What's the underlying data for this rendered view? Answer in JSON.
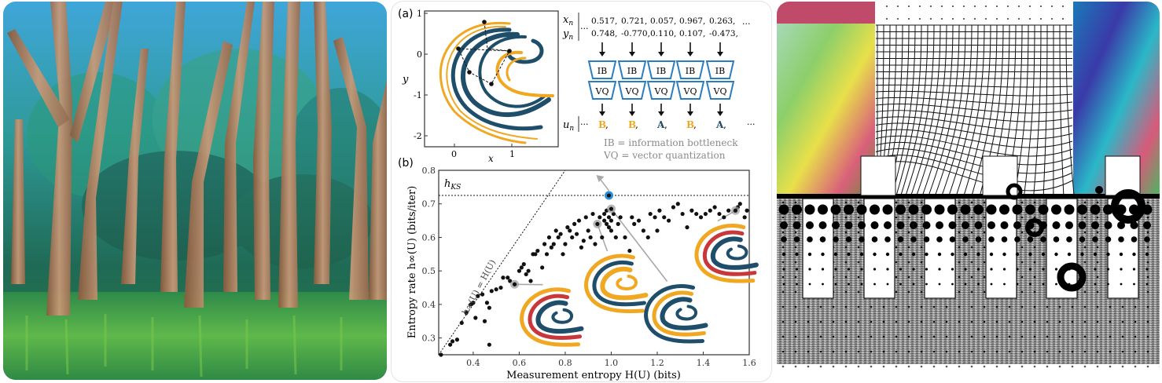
{
  "panels": [
    {
      "name": "forest-painting",
      "description": "Acrylic painting of a forest with tall tree trunks over a green undergrowth with paint drips"
    },
    {
      "name": "scientific-figure",
      "description": "Two-panel figure on measurement entropy and entropy rate of a chaotic attractor"
    },
    {
      "name": "glitch-art",
      "description": "Abstract glitch collage with warped grid, halftone dots, white bars and rings"
    }
  ],
  "colors": {
    "attractor_blue": "#1f4e6b",
    "attractor_orange": "#f0a823",
    "attractor_red": "#c8373a",
    "ib_vq_blue": "#2a7dbf",
    "highlight_blue": "#2b8fd6",
    "arrow_gray": "#a8a8a8",
    "gray_text": "#8a8a8a"
  },
  "figure": {
    "panel_a": {
      "label": "(a)",
      "x_axis_label": "x",
      "y_axis_label": "y",
      "x_ticks": [
        "0",
        "1"
      ],
      "y_ticks": [
        "1",
        "0",
        "-1",
        "-2"
      ],
      "xn_label": "x",
      "xn_sub": "n",
      "yn_label": "y",
      "yn_sub": "n",
      "un_label": "u",
      "un_sub": "n",
      "ellipsis": "···",
      "xn_values": [
        "0.517,",
        "0.721,",
        "0.057,",
        "0.967,",
        "0.263,"
      ],
      "yn_values": [
        "0.748,",
        "-0.770,",
        "0.110,",
        "0.107,",
        "-0.473,"
      ],
      "ib_label": "IB",
      "vq_label": "VQ",
      "symbols": [
        {
          "text": "B",
          "color_key": "orange"
        },
        {
          "text": "B",
          "color_key": "orange"
        },
        {
          "text": "A",
          "color_key": "blue"
        },
        {
          "text": "B",
          "color_key": "orange"
        },
        {
          "text": "A",
          "color_key": "blue"
        }
      ],
      "symbol_comma": ",",
      "legend_ib": "IB = information bottleneck",
      "legend_vq": "VQ = vector quantization"
    },
    "panel_b": {
      "label": "(b)",
      "hks_label": "h",
      "hks_sub": "KS",
      "diag_label": "h∞(U) = H(U)"
    }
  },
  "chart_data": {
    "type": "scatter",
    "title": "",
    "xlabel": "Measurement entropy H(U) (bits)",
    "ylabel": "Entropy rate h∞(U) (bits/iter)",
    "xlim": [
      0.25,
      1.6
    ],
    "ylim": [
      0.25,
      0.8
    ],
    "x_ticks": [
      0.4,
      0.6,
      0.8,
      1.0,
      1.2,
      1.4,
      1.6
    ],
    "x_tick_labels": [
      "0.4",
      "0.6",
      "0.8",
      "1.0",
      "1.2",
      "1.4",
      "1.6"
    ],
    "y_ticks": [
      0.3,
      0.4,
      0.5,
      0.6,
      0.7,
      0.8
    ],
    "y_tick_labels": [
      "0.3",
      "0.4",
      "0.5",
      "0.6",
      "0.7",
      "0.8"
    ],
    "grid": false,
    "reference_lines": [
      {
        "name": "h_KS",
        "type": "horizontal",
        "y": 0.725,
        "style": "dotted"
      },
      {
        "name": "h=H",
        "type": "diagonal",
        "slope": 1,
        "intercept": 0,
        "style": "dotted"
      }
    ],
    "highlighted_point": {
      "x": 0.99,
      "y": 0.725,
      "color": "#2b8fd6"
    },
    "gray_marked_points": [
      {
        "x": 0.58,
        "y": 0.46
      },
      {
        "x": 0.94,
        "y": 0.64
      },
      {
        "x": 1.0,
        "y": 0.685
      },
      {
        "x": 1.54,
        "y": 0.68
      }
    ],
    "points": [
      [
        0.26,
        0.25
      ],
      [
        0.3,
        0.28
      ],
      [
        0.31,
        0.29
      ],
      [
        0.33,
        0.295
      ],
      [
        0.35,
        0.345
      ],
      [
        0.37,
        0.375
      ],
      [
        0.39,
        0.4
      ],
      [
        0.4,
        0.405
      ],
      [
        0.41,
        0.36
      ],
      [
        0.42,
        0.425
      ],
      [
        0.44,
        0.43
      ],
      [
        0.45,
        0.35
      ],
      [
        0.46,
        0.405
      ],
      [
        0.47,
        0.39
      ],
      [
        0.47,
        0.28
      ],
      [
        0.48,
        0.44
      ],
      [
        0.5,
        0.445
      ],
      [
        0.52,
        0.45
      ],
      [
        0.53,
        0.48
      ],
      [
        0.55,
        0.48
      ],
      [
        0.56,
        0.47
      ],
      [
        0.6,
        0.5
      ],
      [
        0.61,
        0.51
      ],
      [
        0.62,
        0.52
      ],
      [
        0.63,
        0.49
      ],
      [
        0.64,
        0.5
      ],
      [
        0.65,
        0.47
      ],
      [
        0.66,
        0.55
      ],
      [
        0.67,
        0.55
      ],
      [
        0.68,
        0.56
      ],
      [
        0.7,
        0.51
      ],
      [
        0.71,
        0.58
      ],
      [
        0.72,
        0.55
      ],
      [
        0.73,
        0.6
      ],
      [
        0.74,
        0.57
      ],
      [
        0.75,
        0.58
      ],
      [
        0.76,
        0.62
      ],
      [
        0.77,
        0.6
      ],
      [
        0.78,
        0.61
      ],
      [
        0.79,
        0.55
      ],
      [
        0.8,
        0.58
      ],
      [
        0.81,
        0.63
      ],
      [
        0.82,
        0.62
      ],
      [
        0.83,
        0.6
      ],
      [
        0.84,
        0.64
      ],
      [
        0.85,
        0.61
      ],
      [
        0.86,
        0.65
      ],
      [
        0.87,
        0.57
      ],
      [
        0.88,
        0.59
      ],
      [
        0.89,
        0.66
      ],
      [
        0.9,
        0.62
      ],
      [
        0.91,
        0.6
      ],
      [
        0.92,
        0.67
      ],
      [
        0.93,
        0.58
      ],
      [
        0.95,
        0.66
      ],
      [
        0.96,
        0.6
      ],
      [
        0.97,
        0.65
      ],
      [
        0.97,
        0.67
      ],
      [
        0.98,
        0.64
      ],
      [
        0.98,
        0.68
      ],
      [
        0.99,
        0.66
      ],
      [
        0.99,
        0.63
      ],
      [
        1.0,
        0.62
      ],
      [
        1.0,
        0.65
      ],
      [
        1.01,
        0.67
      ],
      [
        1.02,
        0.6
      ],
      [
        1.03,
        0.64
      ],
      [
        1.04,
        0.66
      ],
      [
        1.06,
        0.6
      ],
      [
        1.08,
        0.56
      ],
      [
        1.09,
        0.66
      ],
      [
        1.1,
        0.64
      ],
      [
        1.12,
        0.65
      ],
      [
        1.14,
        0.62
      ],
      [
        1.16,
        0.6
      ],
      [
        1.17,
        0.67
      ],
      [
        1.19,
        0.66
      ],
      [
        1.2,
        0.62
      ],
      [
        1.21,
        0.68
      ],
      [
        1.23,
        0.66
      ],
      [
        1.25,
        0.65
      ],
      [
        1.27,
        0.69
      ],
      [
        1.29,
        0.7
      ],
      [
        1.31,
        0.67
      ],
      [
        1.33,
        0.63
      ],
      [
        1.35,
        0.68
      ],
      [
        1.37,
        0.67
      ],
      [
        1.39,
        0.66
      ],
      [
        1.41,
        0.67
      ],
      [
        1.43,
        0.68
      ],
      [
        1.45,
        0.69
      ],
      [
        1.47,
        0.67
      ],
      [
        1.49,
        0.66
      ],
      [
        1.51,
        0.68
      ],
      [
        1.55,
        0.69
      ],
      [
        1.56,
        0.7
      ],
      [
        1.58,
        0.66
      ],
      [
        1.59,
        0.68
      ]
    ]
  }
}
